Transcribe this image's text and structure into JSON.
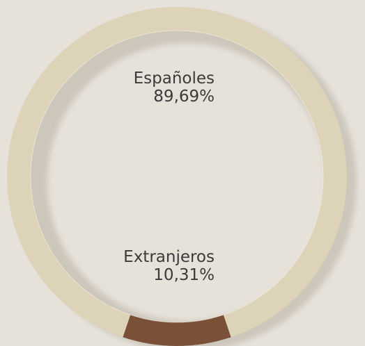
{
  "chart_data": {
    "type": "pie",
    "title": "",
    "slices": [
      {
        "name": "Españoles",
        "label": "89,69%",
        "value": 89.69,
        "color": "#d8ceb0"
      },
      {
        "name": "Extranjeros",
        "label": "10,31%",
        "value": 10.31,
        "color": "#6b3d22"
      }
    ],
    "style": "donut",
    "legend": "inline"
  }
}
